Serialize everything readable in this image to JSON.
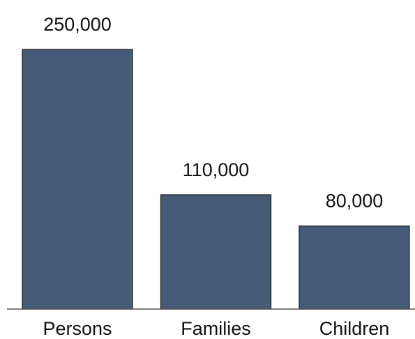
{
  "chart_data": {
    "type": "bar",
    "categories": [
      "Persons",
      "Families",
      "Children"
    ],
    "values": [
      250000,
      110000,
      80000
    ],
    "data_labels": [
      "250,000",
      "110,000",
      "80,000"
    ],
    "ylim": [
      0,
      250000
    ],
    "grid": false,
    "colors": {
      "bar": "#455b78",
      "bar_outline": "#1a1a1a",
      "axis": "#555555",
      "text": "#111111"
    }
  }
}
